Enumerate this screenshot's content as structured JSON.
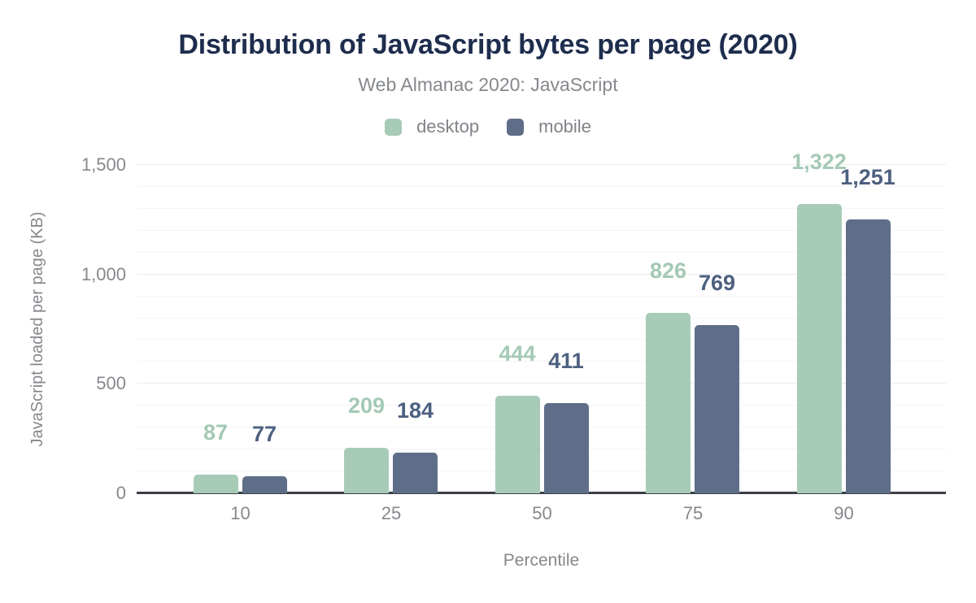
{
  "header": {
    "title": "Distribution of JavaScript bytes per page (2020)",
    "subtitle": "Web Almanac 2020: JavaScript"
  },
  "chart_data": {
    "type": "bar",
    "title": "Distribution of JavaScript bytes per page (2020)",
    "subtitle": "Web Almanac 2020: JavaScript",
    "categories": [
      "10",
      "25",
      "50",
      "75",
      "90"
    ],
    "series": [
      {
        "name": "desktop",
        "color": "#a8cbb8",
        "label_color": "#a4c9b5",
        "values": [
          87,
          209,
          444,
          826,
          1322
        ],
        "labels": [
          "87",
          "209",
          "444",
          "826",
          "1,322"
        ]
      },
      {
        "name": "mobile",
        "color": "#5f6e88",
        "label_color": "#4d6080",
        "values": [
          77,
          184,
          411,
          769,
          1251
        ],
        "labels": [
          "77",
          "184",
          "411",
          "769",
          "1,251"
        ]
      }
    ],
    "xlabel": "Percentile",
    "ylabel": "JavaScript loaded per page (KB)",
    "ylim": [
      0,
      1500
    ],
    "yticks": [
      0,
      500,
      1000,
      1500
    ],
    "ytick_labels": [
      "0",
      "500",
      "1,000",
      "1,500"
    ],
    "minor_grid_step": 100,
    "grid": true,
    "legend_position": "top"
  },
  "colors": {
    "title": "#1e2d4d",
    "muted_text": "#85888c",
    "axis_line": "#3a3f46",
    "grid_major": "#ebecec",
    "grid_minor": "#f5f5f5",
    "background": "#ffffff"
  }
}
